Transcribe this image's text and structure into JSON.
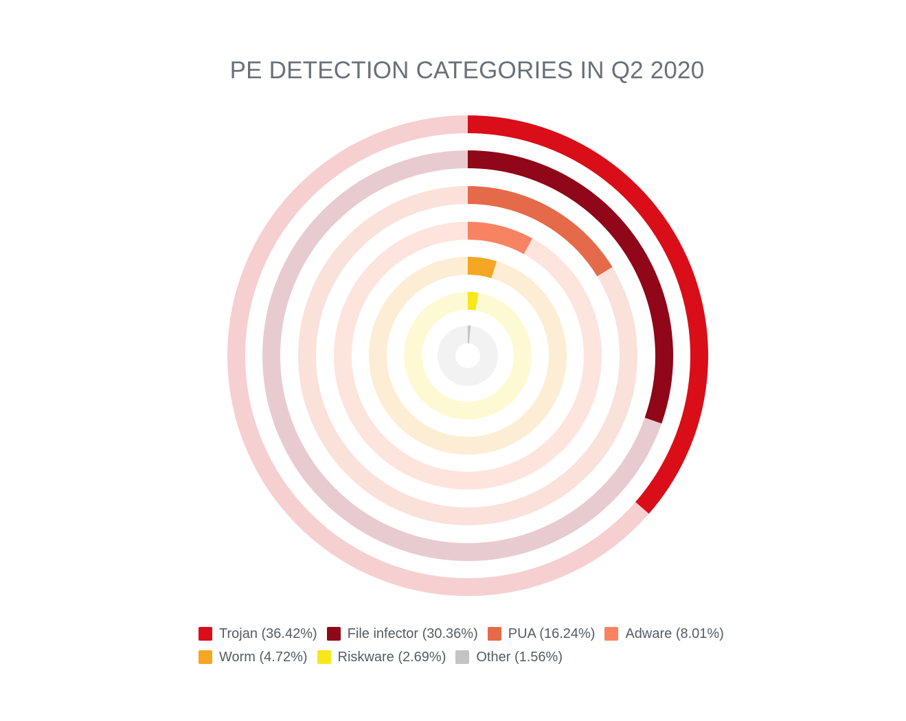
{
  "chart_data": {
    "type": "radial-bar",
    "title": "PE DETECTION CATEGORIES IN Q2 2020",
    "unit": "%",
    "max": 100,
    "series": [
      {
        "name": "Trojan",
        "value": 36.42,
        "label": "Trojan (36.42%)",
        "color": "#d90e18",
        "track_color": "#f6cfd1"
      },
      {
        "name": "File infector",
        "value": 30.36,
        "label": "File infector (30.36%)",
        "color": "#8f0718",
        "track_color": "#e8cbd0"
      },
      {
        "name": "PUA",
        "value": 16.24,
        "label": "PUA (16.24%)",
        "color": "#e56a4a",
        "track_color": "#fae1da"
      },
      {
        "name": "Adware",
        "value": 8.01,
        "label": "Adware (8.01%)",
        "color": "#f88363",
        "track_color": "#fde4dd"
      },
      {
        "name": "Worm",
        "value": 4.72,
        "label": "Worm (4.72%)",
        "color": "#f5a623",
        "track_color": "#fdedd4"
      },
      {
        "name": "Riskware",
        "value": 2.69,
        "label": "Riskware (2.69%)",
        "color": "#f8e71c",
        "track_color": "#fdf9d2"
      },
      {
        "name": "Other",
        "value": 1.56,
        "label": "Other (1.56%)",
        "color": "#c4c4c4",
        "track_color": "#f2f2f2"
      }
    ],
    "legend_rows": [
      [
        0,
        1,
        2,
        3
      ],
      [
        4,
        5,
        6
      ]
    ],
    "legend_position": "bottom"
  }
}
